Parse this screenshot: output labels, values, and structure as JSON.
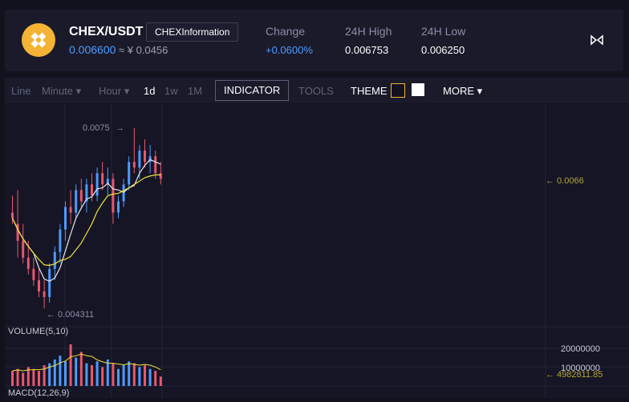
{
  "header": {
    "pair": "CHEX/USDT",
    "info_button": "CHEXInformation",
    "price": "0.006600",
    "price_cny": "≈ ¥ 0.0456",
    "stats": [
      {
        "label": "Change",
        "value": "+0.0600%",
        "color": "#4d9bff"
      },
      {
        "label": "24H High",
        "value": "0.006753",
        "color": "#ffffff"
      },
      {
        "label": "24H Low",
        "value": "0.006250",
        "color": "#ffffff"
      }
    ],
    "logo_color": "#f3b335"
  },
  "toolbar": {
    "line": "Line",
    "minute": "Minute ▾",
    "hour": "Hour ▾",
    "d1": "1d",
    "w1": "1w",
    "m1": "1M",
    "indicator": "INDICATOR",
    "tools": "TOOLS",
    "theme": "THEME",
    "more": "MORE ▾"
  },
  "chart": {
    "high_label": "0.0075",
    "low_label": "← 0.004311",
    "price_marker": "← 0.0066",
    "volume_label": "VOLUME(5,10)",
    "vol_axis_high": "20000000",
    "vol_axis_mid": "10000000",
    "vol_marker": "← 4982811.85",
    "macd_label": "MACD(12,26,9)",
    "up_color": "#4d9bff",
    "down_color": "#e8586c",
    "ma_white": "#e6e6ee",
    "ma_yellow": "#f0e23c"
  },
  "chart_data": {
    "type": "candlestick",
    "ohlc": [
      [
        0.006,
        0.0063,
        0.0058,
        0.0059
      ],
      [
        0.0058,
        0.0064,
        0.0052,
        0.0055
      ],
      [
        0.0055,
        0.0058,
        0.0051,
        0.0052
      ],
      [
        0.0052,
        0.0055,
        0.0049,
        0.005
      ],
      [
        0.005,
        0.0052,
        0.0047,
        0.0048
      ],
      [
        0.0048,
        0.005,
        0.0045,
        0.0046
      ],
      [
        0.0046,
        0.0048,
        0.0043,
        0.0045
      ],
      [
        0.0045,
        0.0051,
        0.0044,
        0.005
      ],
      [
        0.005,
        0.0054,
        0.0048,
        0.0053
      ],
      [
        0.0053,
        0.0058,
        0.0051,
        0.0057
      ],
      [
        0.0057,
        0.0062,
        0.0055,
        0.0061
      ],
      [
        0.0061,
        0.0064,
        0.0058,
        0.006
      ],
      [
        0.006,
        0.0065,
        0.0059,
        0.0064
      ],
      [
        0.0064,
        0.0066,
        0.0061,
        0.0062
      ],
      [
        0.0062,
        0.0066,
        0.006,
        0.0065
      ],
      [
        0.0065,
        0.0067,
        0.0062,
        0.0063
      ],
      [
        0.0063,
        0.0068,
        0.0062,
        0.0067
      ],
      [
        0.0067,
        0.0069,
        0.0064,
        0.0065
      ],
      [
        0.0065,
        0.0068,
        0.0063,
        0.0066
      ],
      [
        0.0066,
        0.0067,
        0.0058,
        0.006
      ],
      [
        0.006,
        0.0063,
        0.0059,
        0.0062
      ],
      [
        0.0062,
        0.0066,
        0.0061,
        0.0065
      ],
      [
        0.0065,
        0.007,
        0.0064,
        0.0069
      ],
      [
        0.0069,
        0.0075,
        0.0067,
        0.0068
      ],
      [
        0.0068,
        0.0072,
        0.0066,
        0.0071
      ],
      [
        0.0071,
        0.0073,
        0.0068,
        0.0069
      ],
      [
        0.0069,
        0.0072,
        0.0067,
        0.007
      ],
      [
        0.007,
        0.0071,
        0.0066,
        0.0067
      ],
      [
        0.0067,
        0.0069,
        0.0065,
        0.0066
      ]
    ],
    "volume": [
      8,
      9,
      7,
      10,
      9,
      8,
      11,
      12,
      14,
      16,
      13,
      22,
      15,
      18,
      12,
      11,
      13,
      10,
      14,
      12,
      9,
      11,
      13,
      12,
      10,
      11,
      9,
      8,
      5
    ],
    "ylim": [
      0.0043,
      0.0075
    ]
  }
}
